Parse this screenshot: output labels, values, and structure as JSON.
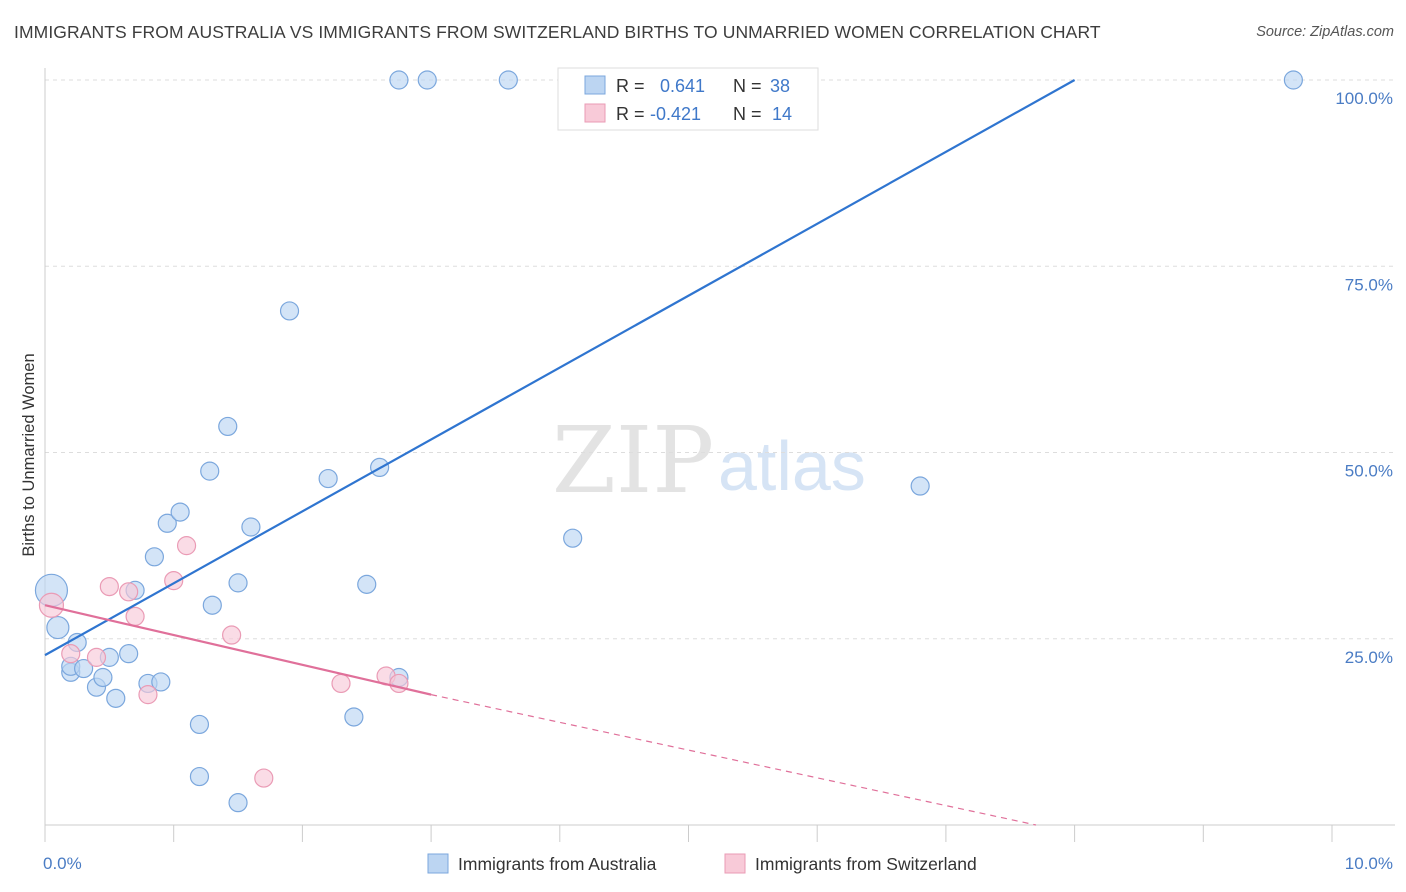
{
  "title": "IMMIGRANTS FROM AUSTRALIA VS IMMIGRANTS FROM SWITZERLAND BIRTHS TO UNMARRIED WOMEN CORRELATION CHART",
  "source": "Source: ZipAtlas.com",
  "watermark": {
    "zip": "ZIP",
    "atlas": "atlas"
  },
  "colors": {
    "australia_fill": "#bcd5f2",
    "australia_stroke": "#7ba7dd",
    "australia_line": "#2f75d0",
    "switzerland_fill": "#f8cad8",
    "switzerland_stroke": "#ea9bb5",
    "switzerland_line": "#e0709a",
    "grid": "#dddddd",
    "axis_label": "#4a7cc4"
  },
  "stats": {
    "r_label": "R =",
    "n_label": "N =",
    "rows": [
      {
        "series": "australia",
        "r": "0.641",
        "n": "38"
      },
      {
        "series": "switzerland",
        "r": "-0.421",
        "n": "14"
      }
    ]
  },
  "chart_data": {
    "type": "scatter",
    "xlabel": "",
    "ylabel": "Births to Unmarried Women",
    "xlim": [
      0,
      10
    ],
    "ylim": [
      0,
      100
    ],
    "x_tick_labels": [
      {
        "value": 0,
        "label": "0.0%"
      },
      {
        "value": 10,
        "label": "10.0%"
      }
    ],
    "y_tick_labels": [
      {
        "value": 25,
        "label": "25.0%"
      },
      {
        "value": 50,
        "label": "50.0%"
      },
      {
        "value": 75,
        "label": "75.0%"
      },
      {
        "value": 100,
        "label": "100.0%"
      }
    ],
    "grid": true,
    "legend": "bottom",
    "series": [
      {
        "name": "Immigrants from Australia",
        "key": "australia",
        "points": [
          [
            0.05,
            31.5,
            16
          ],
          [
            0.1,
            26.5,
            11
          ],
          [
            0.2,
            20.5,
            9
          ],
          [
            0.25,
            24.5,
            9
          ],
          [
            0.4,
            18.5,
            9
          ],
          [
            0.2,
            21.3,
            9
          ],
          [
            0.3,
            21.0,
            9
          ],
          [
            0.45,
            19.8,
            9
          ],
          [
            0.5,
            22.5,
            9
          ],
          [
            0.55,
            17.0,
            9
          ],
          [
            0.65,
            23.0,
            9
          ],
          [
            0.7,
            31.5,
            9
          ],
          [
            0.8,
            19.0,
            9
          ],
          [
            0.9,
            19.2,
            9
          ],
          [
            0.85,
            36.0,
            9
          ],
          [
            0.95,
            40.5,
            9
          ],
          [
            1.05,
            42.0,
            9
          ],
          [
            1.2,
            13.5,
            9
          ],
          [
            1.3,
            29.5,
            9
          ],
          [
            1.28,
            47.5,
            9
          ],
          [
            1.42,
            53.5,
            9
          ],
          [
            1.5,
            32.5,
            9
          ],
          [
            1.6,
            40.0,
            9
          ],
          [
            1.2,
            6.5,
            9
          ],
          [
            1.5,
            3.0,
            9
          ],
          [
            1.9,
            69.0,
            9
          ],
          [
            2.2,
            46.5,
            9
          ],
          [
            2.4,
            14.5,
            9
          ],
          [
            2.5,
            32.3,
            9
          ],
          [
            2.6,
            48.0,
            9
          ],
          [
            2.75,
            19.8,
            9
          ],
          [
            2.75,
            100,
            9
          ],
          [
            2.97,
            100,
            9
          ],
          [
            3.6,
            100,
            9
          ],
          [
            4.1,
            38.5,
            9
          ],
          [
            4.45,
            100,
            9
          ],
          [
            6.8,
            45.5,
            9
          ],
          [
            9.7,
            100,
            9
          ]
        ],
        "trend": {
          "x": [
            0,
            8.0
          ],
          "y": [
            22.8,
            100
          ]
        }
      },
      {
        "name": "Immigrants from Switzerland",
        "key": "switzerland",
        "points": [
          [
            0.05,
            29.5,
            12
          ],
          [
            0.2,
            23.0,
            9
          ],
          [
            0.4,
            22.5,
            9
          ],
          [
            0.5,
            32.0,
            9
          ],
          [
            0.65,
            31.3,
            9
          ],
          [
            0.7,
            28.0,
            9
          ],
          [
            0.8,
            17.5,
            9
          ],
          [
            1.0,
            32.8,
            9
          ],
          [
            1.1,
            37.5,
            9
          ],
          [
            1.45,
            25.5,
            9
          ],
          [
            1.7,
            6.3,
            9
          ],
          [
            2.3,
            19.0,
            9
          ],
          [
            2.65,
            20.0,
            9
          ],
          [
            2.75,
            19.0,
            9
          ]
        ],
        "trend": {
          "x": [
            0,
            3.0
          ],
          "y": [
            29.5,
            17.5
          ]
        },
        "trend_extension": {
          "x": [
            3.0,
            7.7
          ],
          "y": [
            17.5,
            0
          ]
        }
      }
    ]
  }
}
